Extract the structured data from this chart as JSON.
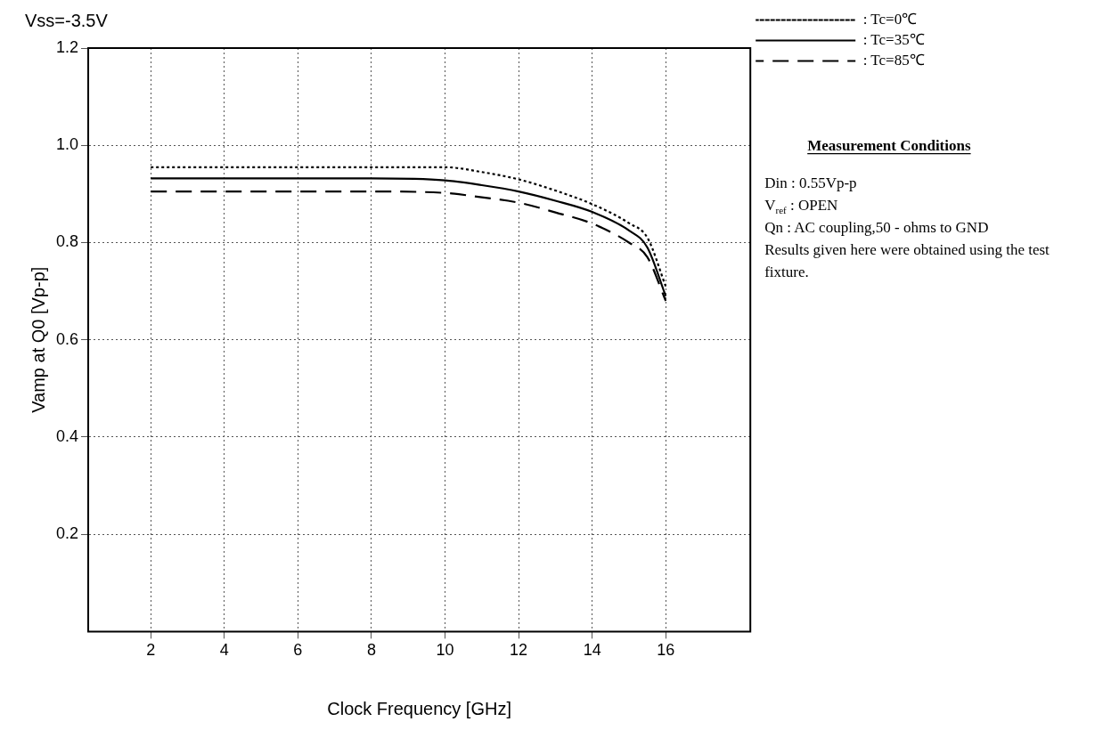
{
  "chart_data": {
    "type": "line",
    "title": "Vss=-3.5V",
    "xlabel": "Clock Frequency [GHz]",
    "ylabel": "Vamp at Q0 [Vp-p]",
    "x": [
      2,
      4,
      6,
      8,
      10,
      11,
      12,
      13,
      14,
      15,
      15.5,
      16
    ],
    "series": [
      {
        "name": ": Tc=0℃",
        "color": "#000000",
        "line_style": "dotted",
        "values": [
          0.955,
          0.955,
          0.955,
          0.955,
          0.955,
          0.945,
          0.93,
          0.907,
          0.879,
          0.84,
          0.81,
          0.71
        ]
      },
      {
        "name": ": Tc=35℃",
        "color": "#000000",
        "line_style": "solid",
        "values": [
          0.932,
          0.932,
          0.932,
          0.932,
          0.928,
          0.918,
          0.905,
          0.886,
          0.863,
          0.825,
          0.79,
          0.69
        ]
      },
      {
        "name": ": Tc=85℃",
        "color": "#000000",
        "line_style": "dashed",
        "values": [
          0.905,
          0.905,
          0.905,
          0.905,
          0.902,
          0.893,
          0.882,
          0.862,
          0.839,
          0.8,
          0.77,
          0.68
        ]
      }
    ],
    "xlim": [
      0.3,
      18.3
    ],
    "xticks": [
      2,
      4,
      6,
      8,
      10,
      12,
      14,
      16
    ],
    "ylim": [
      0,
      1.2
    ],
    "yticks": [
      0.2,
      0.4,
      0.6,
      0.8,
      {
        "value": 1,
        "label": "1.0"
      },
      1.2
    ],
    "grid": true,
    "legend": "top right",
    "marker": "none",
    "annotations": [
      "Measurement Conditions",
      "Din : 0.55Vp-p",
      "V$_{ref}$ : OPEN",
      "Qn : AC coupling,50 - ohms to GND",
      "Results given here were obtained using the test fixture."
    ]
  }
}
